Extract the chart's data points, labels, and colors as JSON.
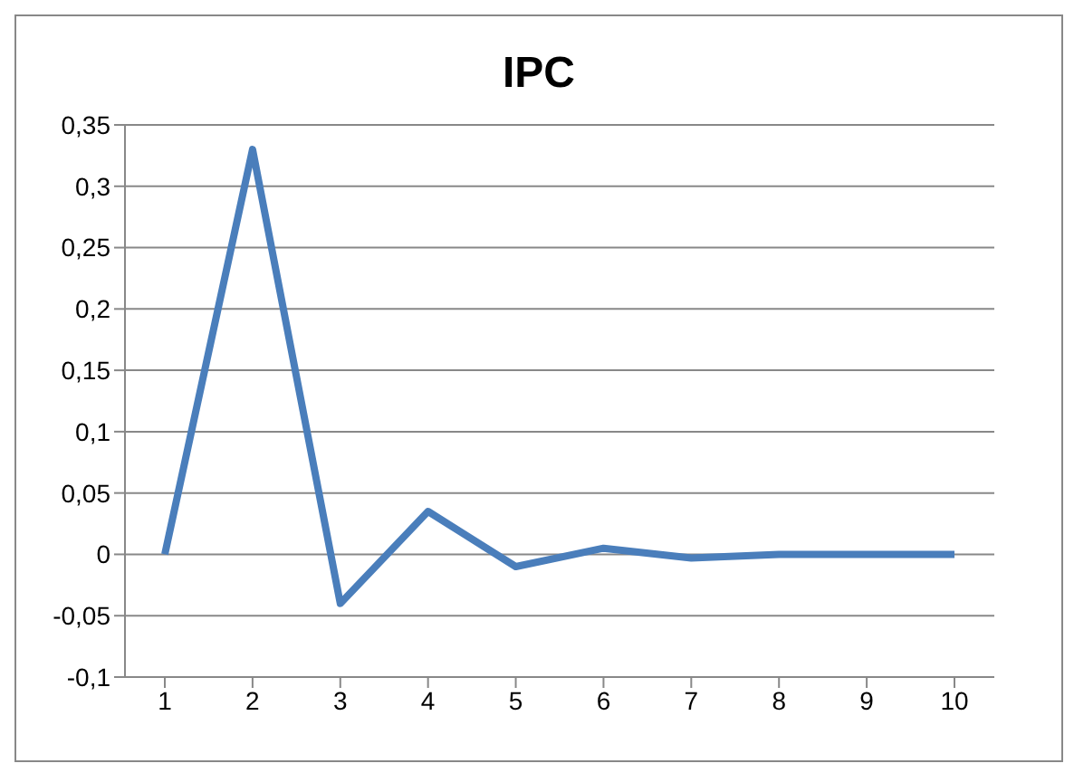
{
  "chart_data": {
    "type": "line",
    "title": "IPC",
    "categories": [
      "1",
      "2",
      "3",
      "4",
      "5",
      "6",
      "7",
      "8",
      "9",
      "10"
    ],
    "series": [
      {
        "color": "#4a7ebb",
        "values": [
          0,
          0.33,
          -0.04,
          0.035,
          -0.01,
          0.005,
          -0.003,
          0,
          0,
          0
        ]
      }
    ],
    "ylim": [
      -0.1,
      0.35
    ],
    "yticks": [
      {
        "value": -0.1,
        "label": "-0,1"
      },
      {
        "value": -0.05,
        "label": "-0,05"
      },
      0,
      {
        "value": 0.05,
        "label": "0,05"
      },
      {
        "value": 0.1,
        "label": "0,1"
      },
      {
        "value": 0.15,
        "label": "0,15"
      },
      {
        "value": 0.2,
        "label": "0,2"
      },
      {
        "value": 0.25,
        "label": "0,25"
      },
      {
        "value": 0.3,
        "label": "0,3"
      },
      {
        "value": 0.35,
        "label": "0,35"
      }
    ],
    "grid": "y",
    "marker": "none",
    "line_style": "solid"
  }
}
